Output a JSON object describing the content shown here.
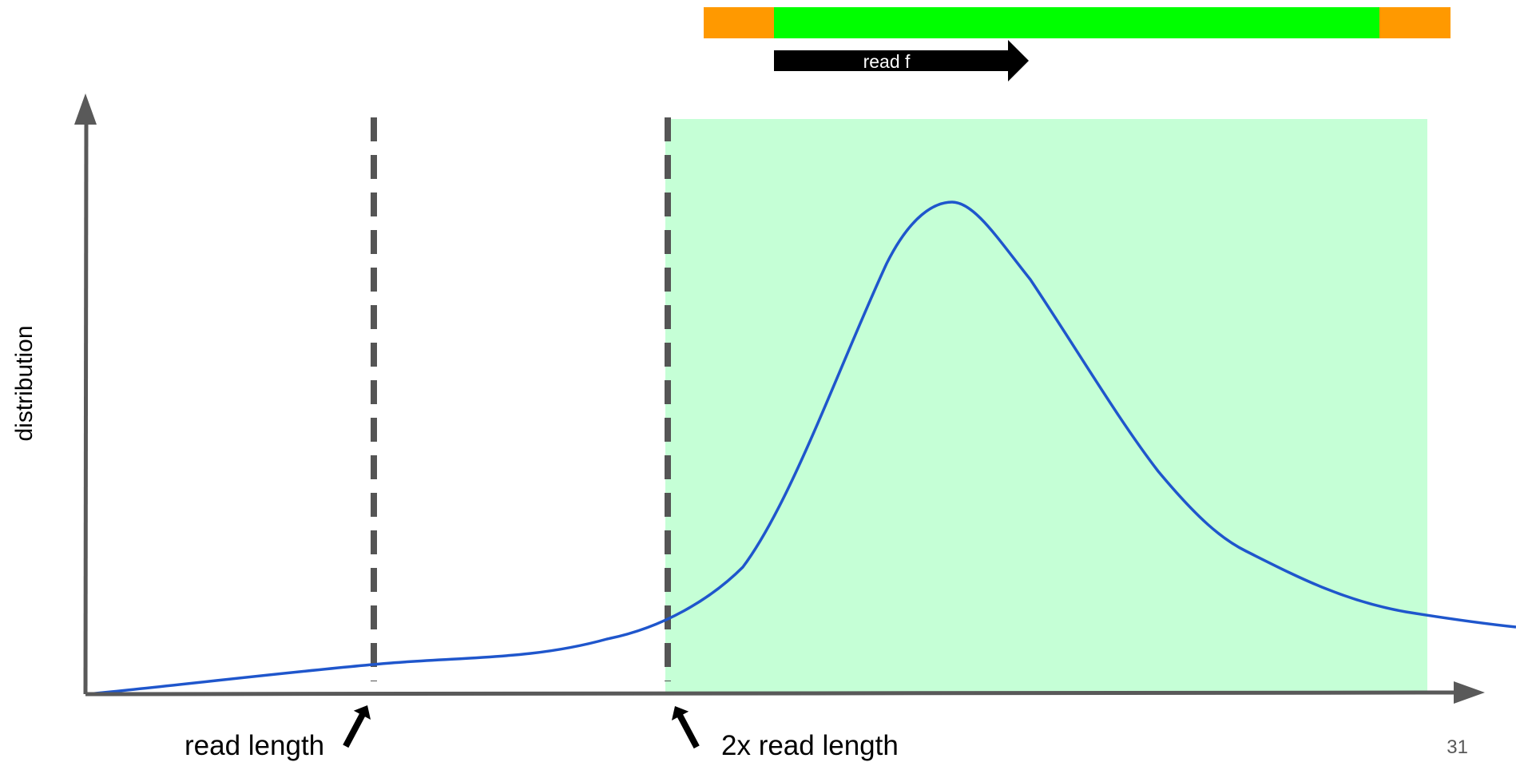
{
  "diagram": {
    "y_axis_label": "distribution",
    "read_label": "read f",
    "annotations": {
      "read_length": "read length",
      "double_read_length": "2x read length"
    },
    "page_number": "31",
    "colors": {
      "fragment_end": "#ff9900",
      "fragment_middle": "#00ff00",
      "selected_region": "#c5ffd6",
      "distribution_curve": "#1f56cc",
      "axis": "#595959",
      "dashed_marker": "#555555",
      "read_arrow": "#000000"
    },
    "icons": [
      "up-arrow-icon",
      "up-arrow-icon"
    ]
  }
}
